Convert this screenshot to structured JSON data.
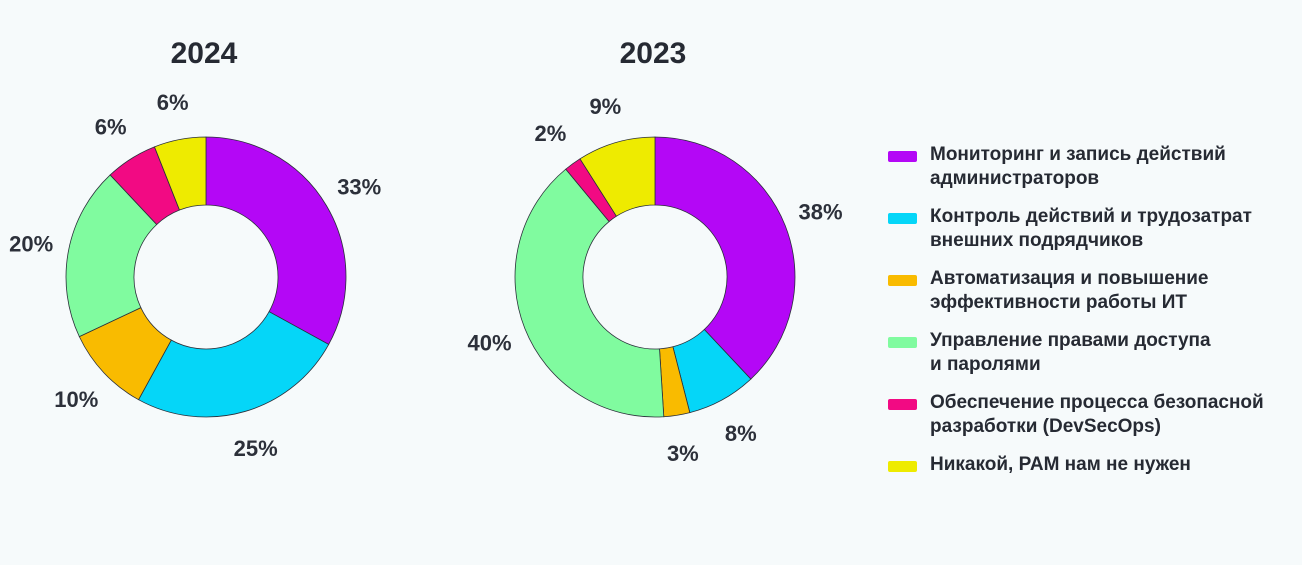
{
  "chart_data": [
    {
      "type": "pie",
      "title": "2024",
      "categories": [
        "Мониторинг и запись действий администраторов",
        "Контроль действий и трудозатрат внешних подрядчиков",
        "Автоматизация и повышение эффективности работы ИТ",
        "Управление правами доступа и паролями",
        "Обеспечение процесса безопасной разработки (DevSecOps)",
        "Никакой, PAM нам не нужен"
      ],
      "values": [
        33,
        25,
        10,
        20,
        6,
        6
      ],
      "labels": [
        "33%",
        "25%",
        "10%",
        "20%",
        "6%",
        "6%"
      ]
    },
    {
      "type": "pie",
      "title": "2023",
      "categories": [
        "Мониторинг и запись действий администраторов",
        "Контроль действий и трудозатрат внешних подрядчиков",
        "Автоматизация и повышение эффективности работы ИТ",
        "Управление правами доступа и паролями",
        "Обеспечение процесса безопасной разработки (DevSecOps)",
        "Никакой, PAM нам не нужен"
      ],
      "values": [
        38,
        8,
        3,
        40,
        2,
        9
      ],
      "labels": [
        "38%",
        "8%",
        "3%",
        "40%",
        "2%",
        "9%"
      ]
    }
  ],
  "legend": {
    "items": [
      {
        "line1": "Мониторинг и запись действий",
        "line2": "администраторов",
        "color": "#b407f6"
      },
      {
        "line1": "Контроль действий и трудозатрат",
        "line2": "внешних подрядчиков",
        "color": "#05d6f8"
      },
      {
        "line1": "Автоматизация и повышение",
        "line2": "эффективности работы ИТ",
        "color": "#f9bb00"
      },
      {
        "line1": "Управление правами доступа",
        "line2": "и паролями",
        "color": "#80fb9f"
      },
      {
        "line1": "Обеспечение процесса безопасной",
        "line2": "разработки (DevSecOps)",
        "color": "#f20a83"
      },
      {
        "line1": "Никакой, PAM нам не нужен",
        "line2": "",
        "color": "#eeeb00"
      }
    ]
  }
}
